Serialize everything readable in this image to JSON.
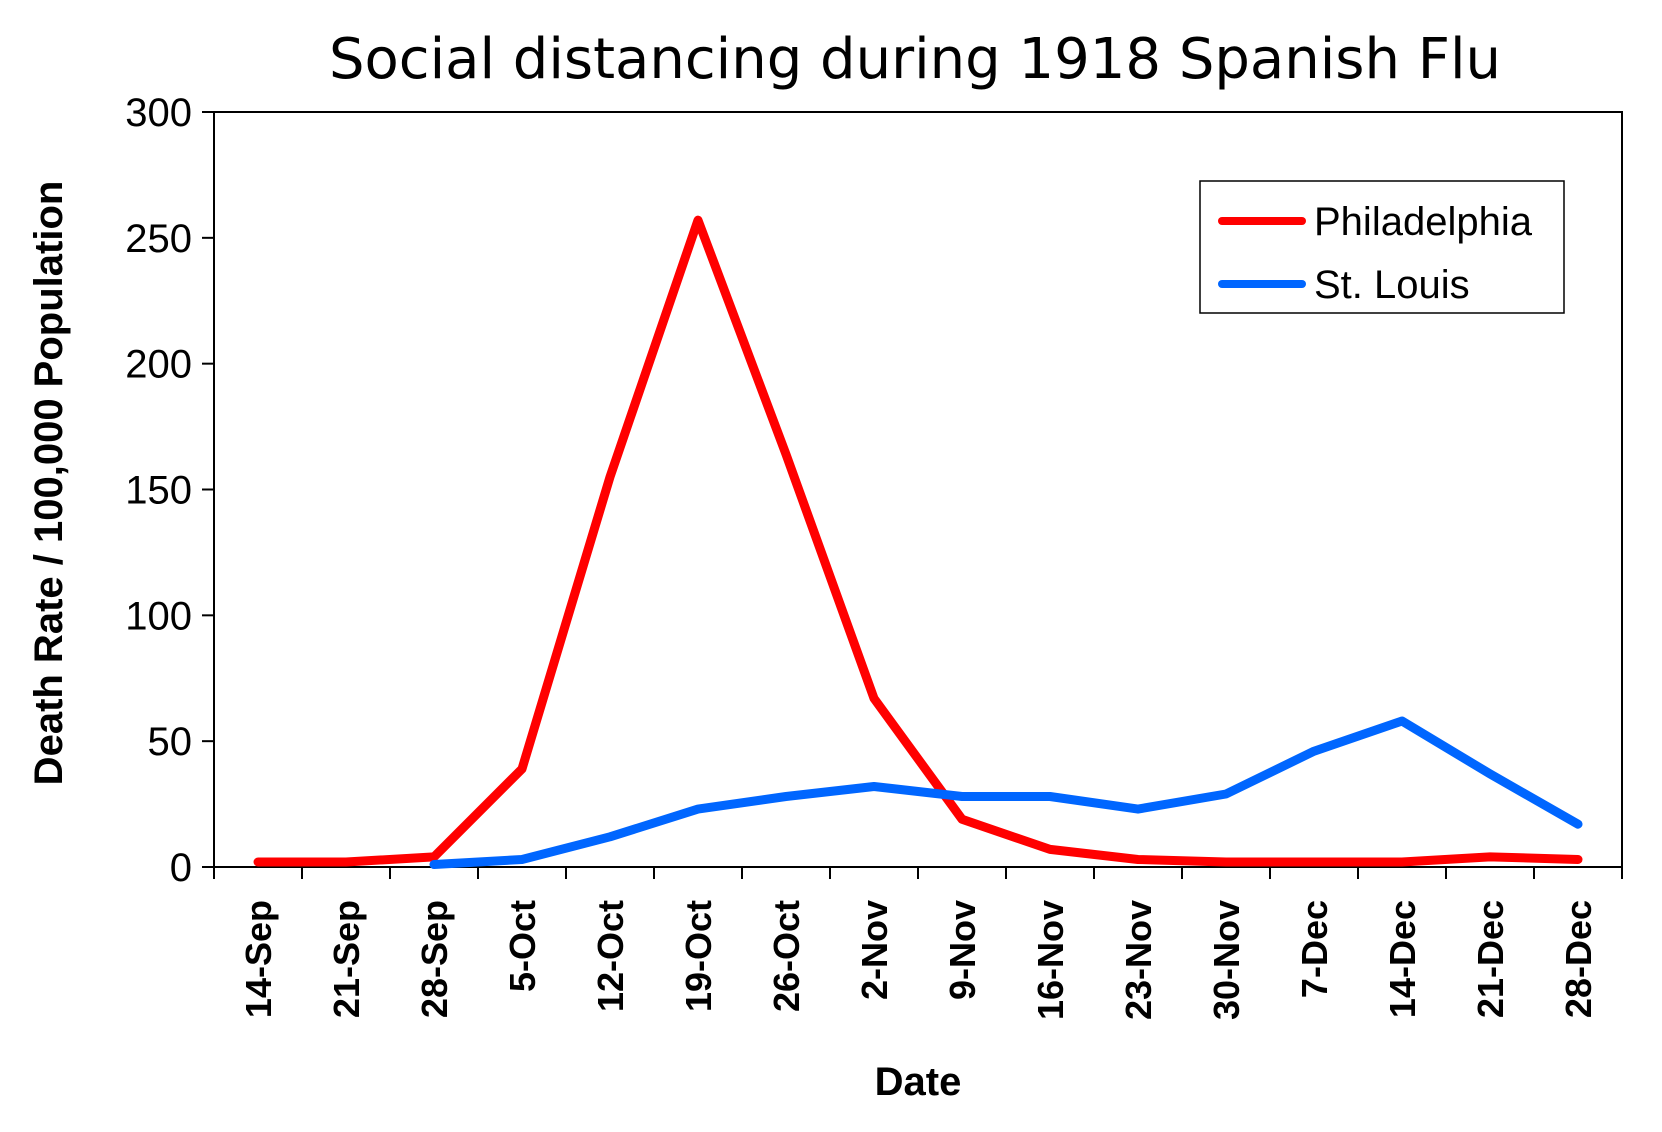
{
  "chart_data": {
    "type": "line",
    "title": "Social distancing during 1918 Spanish Flu",
    "xlabel": "Date",
    "ylabel": "Death Rate / 100,000 Population",
    "ylim": [
      0,
      300
    ],
    "yticks": [
      "0",
      "50",
      "100",
      "150",
      "200",
      "250",
      "300"
    ],
    "categories": [
      "14-Sep",
      "21-Sep",
      "28-Sep",
      "5-Oct",
      "12-Oct",
      "19-Oct",
      "26-Oct",
      "2-Nov",
      "9-Nov",
      "16-Nov",
      "23-Nov",
      "30-Nov",
      "7-Dec",
      "14-Dec",
      "21-Dec",
      "28-Dec"
    ],
    "legend_position": "top-right",
    "grid": false,
    "series": [
      {
        "name": "Philadelphia",
        "color": "#ff0000",
        "values": [
          2,
          2,
          4,
          39,
          155,
          257,
          164,
          67,
          19,
          7,
          3,
          2,
          2,
          2,
          4,
          3
        ]
      },
      {
        "name": "St. Louis",
        "color": "#0066ff",
        "values": [
          null,
          null,
          1,
          3,
          12,
          23,
          28,
          32,
          28,
          28,
          23,
          29,
          46,
          58,
          37,
          17
        ]
      }
    ]
  }
}
